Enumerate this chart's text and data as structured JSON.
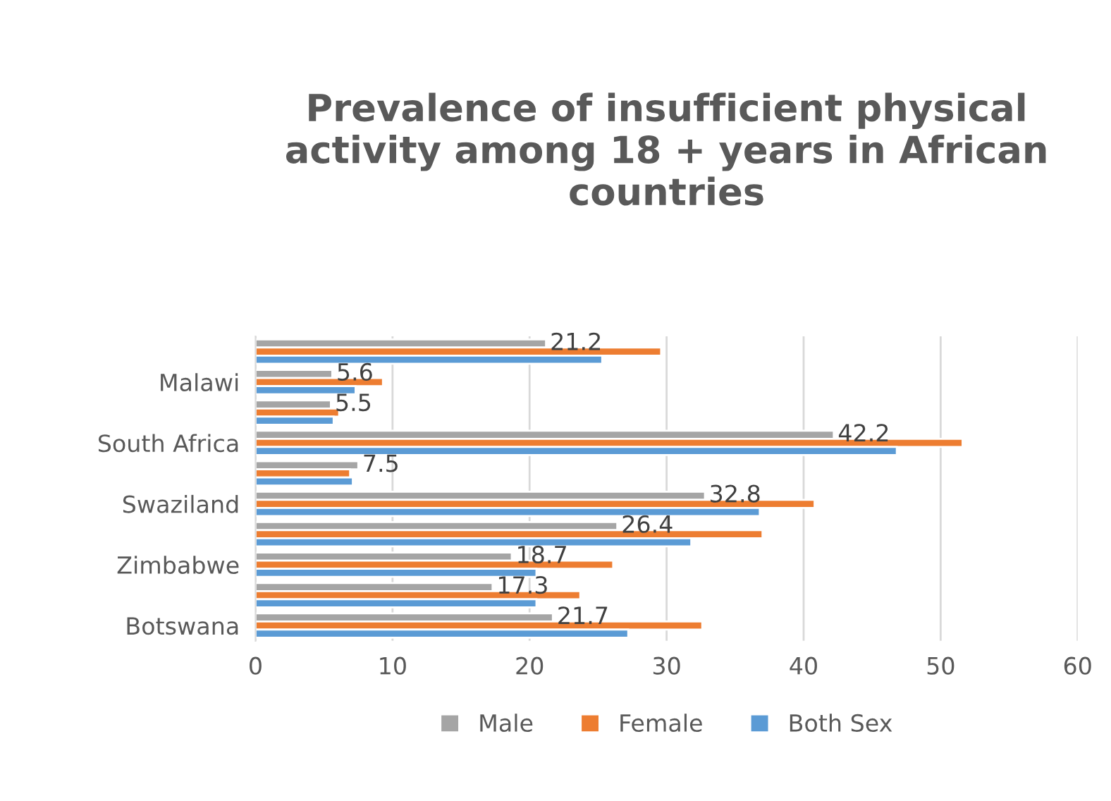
{
  "chart_data": {
    "type": "bar",
    "orientation": "horizontal",
    "title": "Prevalence of insufficient physical activity among 18 + years in African countries",
    "categories": [
      null,
      "Malawi",
      null,
      "South Africa",
      null,
      "Swaziland",
      null,
      "Zimbabwe",
      null,
      "Botswana"
    ],
    "series": [
      {
        "name": "Male",
        "color": "#a5a5a5",
        "values": [
          21.2,
          5.6,
          5.5,
          42.2,
          7.5,
          32.8,
          26.4,
          18.7,
          17.3,
          21.7
        ],
        "value_labels": [
          "21.2",
          "5.6",
          "5.5",
          "42.2",
          "7.5",
          "32.8",
          "26.4",
          "18.7",
          "17.3",
          "21.7"
        ]
      },
      {
        "name": "Female",
        "color": "#ed7d31",
        "values": [
          29.6,
          9.3,
          6.1,
          51.6,
          6.9,
          40.8,
          37.0,
          26.1,
          23.7,
          32.6
        ]
      },
      {
        "name": "Both Sex",
        "color": "#5b9bd5",
        "values": [
          25.3,
          7.3,
          5.7,
          46.8,
          7.1,
          36.8,
          31.8,
          20.5,
          20.5,
          27.2
        ]
      }
    ],
    "xlim": [
      0,
      60
    ],
    "xticks": [
      0,
      10,
      20,
      30,
      40,
      50,
      60
    ],
    "grid": "x",
    "legend": "bottom"
  }
}
